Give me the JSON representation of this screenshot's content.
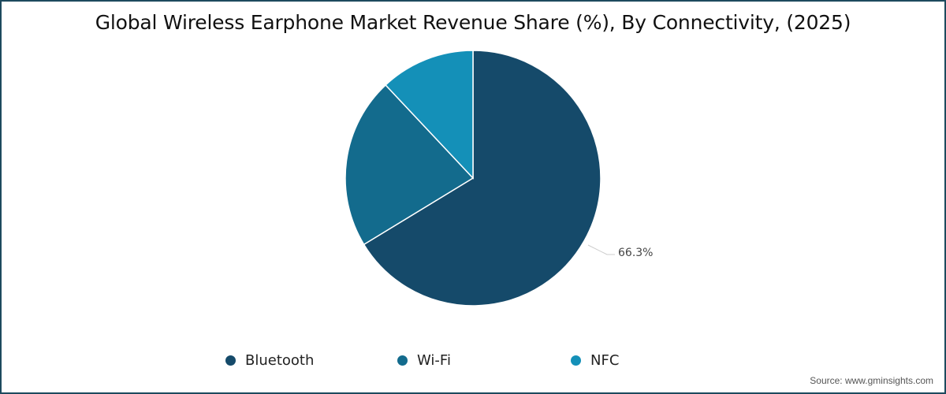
{
  "title": "Global Wireless Earphone Market Revenue Share (%), By Connectivity, (2025)",
  "source": "Source: www.gminsights.com",
  "chart_data": {
    "type": "pie",
    "title": "Global Wireless Earphone Market Revenue Share (%), By Connectivity, (2025)",
    "categories": [
      "Bluetooth",
      "Wi-Fi",
      "NFC"
    ],
    "values": [
      66.3,
      21.7,
      12.0
    ],
    "value_notes": "Only Bluetooth (66.3%) is labeled in the image; Wi-Fi and NFC values are estimated from slice geometry.",
    "colors": [
      "#154a6a",
      "#136b8d",
      "#1490b8"
    ],
    "start_angle_deg": 0,
    "direction": "clockwise",
    "data_labels": [
      {
        "category": "Bluetooth",
        "text": "66.3%"
      }
    ],
    "legend_position": "bottom"
  },
  "legend": [
    {
      "label": "Bluetooth",
      "color": "#154a6a"
    },
    {
      "label": "Wi-Fi",
      "color": "#136b8d"
    },
    {
      "label": "NFC",
      "color": "#1490b8"
    }
  ],
  "data_label": "66.3%"
}
